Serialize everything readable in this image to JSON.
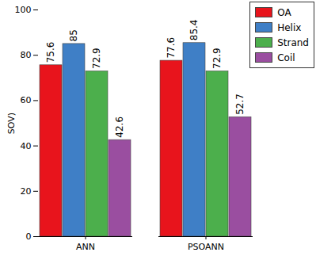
{
  "chart_data": {
    "type": "bar",
    "categories": [
      "ANN",
      "PSOANN"
    ],
    "series": [
      {
        "name": "OA",
        "color": "#e8141c",
        "values": [
          75.6,
          77.6
        ]
      },
      {
        "name": "Helix",
        "color": "#3f7fc6",
        "values": [
          85,
          85.4
        ]
      },
      {
        "name": "Strand",
        "color": "#4caf4c",
        "values": [
          72.9,
          72.9
        ]
      },
      {
        "name": "Coil",
        "color": "#9a4ea0",
        "values": [
          42.6,
          52.7
        ]
      }
    ],
    "y_label": "SOV)",
    "ylim": [
      0,
      100
    ],
    "yticks": [
      0,
      20,
      40,
      60,
      80,
      100
    ],
    "data_labels": true,
    "legend": "upper right"
  }
}
